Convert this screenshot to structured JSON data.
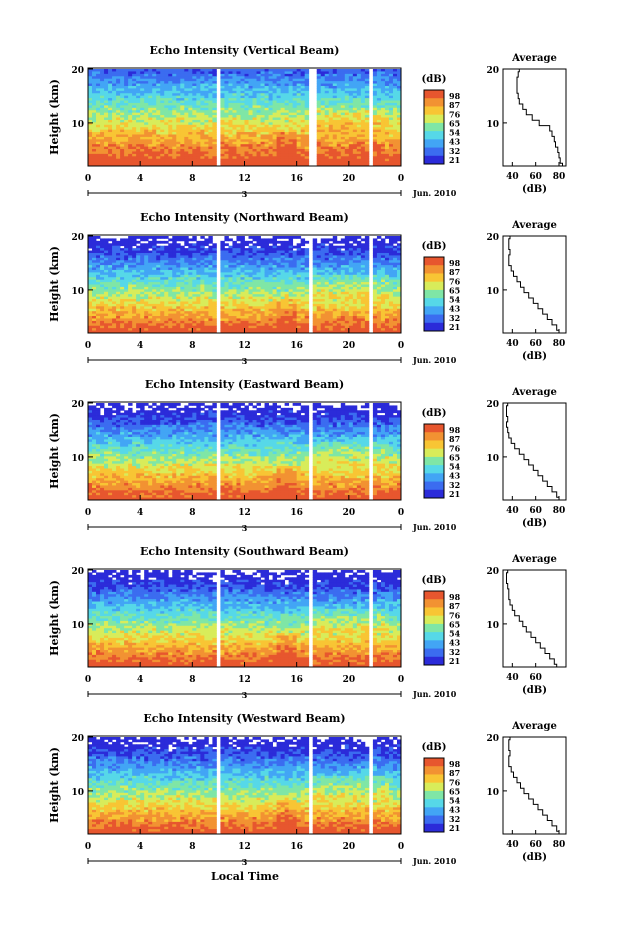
{
  "figure": {
    "xlabel": "Local Time",
    "colorbar_unit": "(dB)",
    "colorbar_ticks": [
      "98",
      "87",
      "76",
      "65",
      "54",
      "43",
      "32",
      "21"
    ],
    "date_axis": {
      "label": "Jun. 2010",
      "day_label": "3"
    },
    "time_ticks": [
      "0",
      "4",
      "8",
      "12",
      "16",
      "20",
      "0"
    ],
    "height_label": "Height (km)",
    "height_ticks": [
      "20",
      "10"
    ],
    "profile_title": "Average",
    "profile_xlabel": "(dB)",
    "colors": [
      "#2b2bd9",
      "#3b6cf0",
      "#42a5f5",
      "#56d8e8",
      "#7fe6a6",
      "#d8ec5a",
      "#f8c534",
      "#f29232",
      "#e7562e"
    ]
  },
  "chart_data": [
    {
      "type": "heatmap",
      "title": "Echo Intensity (Vertical Beam)",
      "profile_ticks": [
        "40",
        "60",
        "80"
      ],
      "xlim": [
        0,
        24
      ],
      "ylim": [
        2,
        20
      ],
      "data_gaps_hours": [
        [
          9.9,
          10.2
        ],
        [
          16.9,
          17.6
        ],
        [
          21.6,
          21.9
        ]
      ],
      "average_profile": {
        "height_km": [
          2,
          3,
          4,
          5,
          6,
          7,
          8,
          9,
          10,
          11,
          12,
          13,
          14,
          15,
          16,
          17,
          18,
          19,
          20
        ],
        "value_db": [
          83,
          81,
          80,
          79,
          77,
          76,
          74,
          72,
          63,
          57,
          52,
          49,
          46,
          45,
          44,
          44,
          44,
          45,
          46
        ]
      }
    },
    {
      "type": "heatmap",
      "title": "Echo Intensity (Northward Beam)",
      "profile_ticks": [
        "40",
        "60",
        "80"
      ],
      "xlim": [
        0,
        24
      ],
      "ylim": [
        2,
        20
      ],
      "data_gaps_hours": [
        [
          9.9,
          10.2
        ],
        [
          16.9,
          17.1
        ],
        [
          21.6,
          21.9
        ]
      ],
      "average_profile": {
        "height_km": [
          2,
          3,
          4,
          5,
          6,
          7,
          8,
          9,
          10,
          11,
          12,
          13,
          14,
          15,
          16,
          17,
          18,
          19,
          20
        ],
        "value_db": [
          80,
          78,
          74,
          70,
          66,
          62,
          58,
          54,
          50,
          47,
          44,
          41,
          39,
          37,
          37,
          38,
          37,
          37,
          38
        ]
      }
    },
    {
      "type": "heatmap",
      "title": "Echo Intensity (Eastward Beam)",
      "profile_ticks": [
        "40",
        "60",
        "80"
      ],
      "xlim": [
        0,
        24
      ],
      "ylim": [
        2,
        20
      ],
      "data_gaps_hours": [
        [
          9.9,
          10.2
        ],
        [
          16.9,
          17.1
        ],
        [
          21.6,
          21.9
        ]
      ],
      "average_profile": {
        "height_km": [
          2,
          3,
          4,
          5,
          6,
          7,
          8,
          9,
          10,
          11,
          12,
          13,
          14,
          15,
          16,
          17,
          18,
          19,
          20
        ],
        "value_db": [
          80,
          78,
          74,
          70,
          66,
          62,
          58,
          54,
          50,
          46,
          42,
          39,
          37,
          36,
          35,
          36,
          35,
          35,
          36
        ]
      }
    },
    {
      "type": "heatmap",
      "title": "Echo Intensity (Southward Beam)",
      "profile_ticks": [
        "40",
        "60"
      ],
      "xlim": [
        0,
        24
      ],
      "ylim": [
        2,
        20
      ],
      "data_gaps_hours": [
        [
          9.9,
          10.2
        ],
        [
          16.9,
          17.1
        ],
        [
          21.6,
          21.9
        ]
      ],
      "average_profile": {
        "height_km": [
          2,
          3,
          4,
          5,
          6,
          7,
          8,
          9,
          10,
          11,
          12,
          13,
          14,
          15,
          16,
          17,
          18,
          19,
          20
        ],
        "value_db": [
          78,
          76,
          72,
          68,
          64,
          60,
          56,
          52,
          49,
          46,
          42,
          40,
          38,
          37,
          37,
          36,
          35,
          35,
          36
        ]
      }
    },
    {
      "type": "heatmap",
      "title": "Echo Intensity (Westward Beam)",
      "profile_ticks": [
        "40",
        "60",
        "80"
      ],
      "xlim": [
        0,
        24
      ],
      "ylim": [
        2,
        20
      ],
      "data_gaps_hours": [
        [
          9.9,
          10.2
        ],
        [
          16.9,
          17.1
        ],
        [
          21.6,
          21.9
        ]
      ],
      "average_profile": {
        "height_km": [
          2,
          3,
          4,
          5,
          6,
          7,
          8,
          9,
          10,
          11,
          12,
          13,
          14,
          15,
          16,
          17,
          18,
          19,
          20
        ],
        "value_db": [
          80,
          78,
          74,
          70,
          66,
          62,
          58,
          54,
          50,
          47,
          44,
          41,
          39,
          37,
          37,
          38,
          37,
          37,
          38
        ]
      }
    }
  ]
}
